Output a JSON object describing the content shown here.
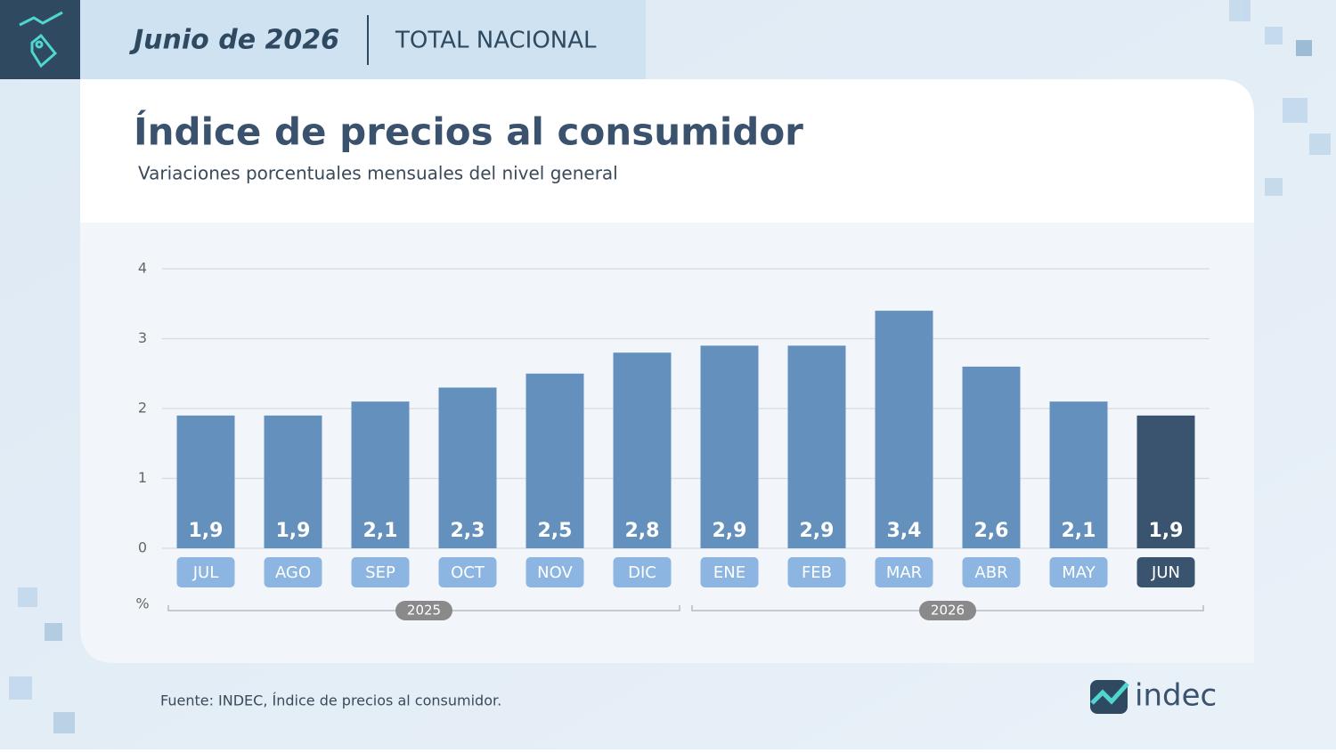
{
  "header": {
    "date": "Junio de 2026",
    "region": "TOTAL NACIONAL"
  },
  "chart_data": {
    "type": "bar",
    "title": "Índice de precios al consumidor",
    "subtitle": "Variaciones porcentuales mensuales del nivel general",
    "y_unit": "%",
    "categories": [
      "JUL",
      "AGO",
      "SEP",
      "OCT",
      "NOV",
      "DIC",
      "ENE",
      "FEB",
      "MAR",
      "ABR",
      "MAY",
      "JUN"
    ],
    "values": [
      1.9,
      1.9,
      2.1,
      2.3,
      2.5,
      2.8,
      2.9,
      2.9,
      3.4,
      2.6,
      2.1,
      1.9
    ],
    "value_labels": [
      "1,9",
      "1,9",
      "2,1",
      "2,3",
      "2,5",
      "2,8",
      "2,9",
      "2,9",
      "3,4",
      "2,6",
      "2,1",
      "1,9"
    ],
    "colors": [
      "#6490bd",
      "#6490bd",
      "#6490bd",
      "#6490bd",
      "#6490bd",
      "#6490bd",
      "#6490bd",
      "#6490bd",
      "#6490bd",
      "#6490bd",
      "#6490bd",
      "#3a536e"
    ],
    "x_groups": [
      {
        "label": "2025",
        "count": 6
      },
      {
        "label": "2026",
        "count": 6
      }
    ],
    "ylim": [
      0,
      4
    ],
    "yticks": [
      0,
      1,
      2,
      3,
      4
    ],
    "grid": true
  },
  "source": "Fuente: INDEC, Índice de precios al consumidor.",
  "logo": "indec"
}
